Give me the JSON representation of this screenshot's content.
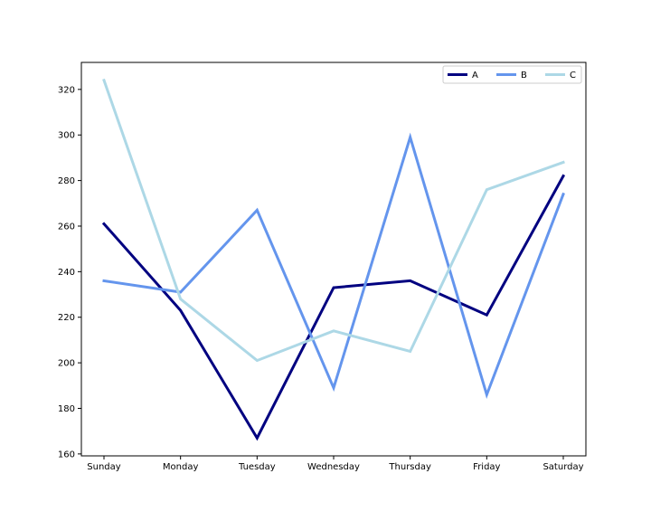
{
  "chart_data": {
    "type": "line",
    "categories": [
      "Sunday",
      "Monday",
      "Tuesday",
      "Wednesday",
      "Thursday",
      "Friday",
      "Saturday"
    ],
    "series": [
      {
        "name": "A",
        "color": "#000080",
        "values": [
          261,
          223,
          167,
          233,
          236,
          221,
          282
        ]
      },
      {
        "name": "B",
        "color": "#6495ed",
        "values": [
          236,
          231,
          267,
          189,
          299,
          186,
          274
        ]
      },
      {
        "name": "C",
        "color": "#add8e6",
        "values": [
          324,
          228,
          201,
          214,
          205,
          276,
          288
        ]
      }
    ],
    "yticks": [
      160,
      180,
      200,
      220,
      240,
      260,
      280,
      300,
      320
    ],
    "ylim": [
      159.15,
      331.85
    ],
    "title": "",
    "xlabel": "",
    "ylabel": "",
    "grid": false,
    "legend_position": "upper-right"
  }
}
